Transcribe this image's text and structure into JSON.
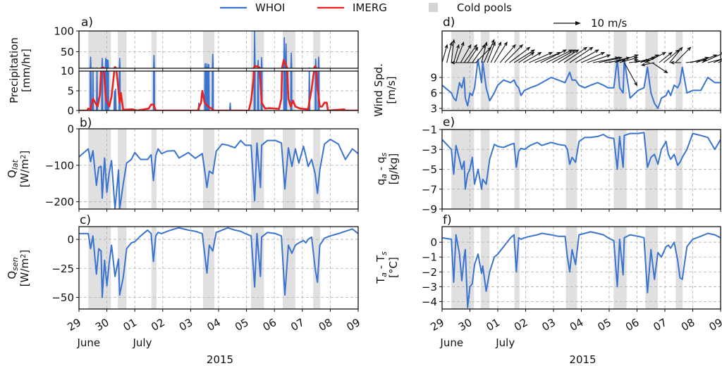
{
  "legend": {
    "whoi": "WHOI",
    "imerg": "IMERG",
    "cold_pools": "Cold pools",
    "colors": {
      "whoi": "#3a74cf",
      "imerg": "#ee2020",
      "cold_pools": "#d9d9d9"
    }
  },
  "wind_reference": {
    "label": "10 m/s",
    "speed": 10
  },
  "x_axis": {
    "xlim": [
      "06-29 00:00",
      "07-09 00:00"
    ],
    "ticks": [
      {
        "t": "06-29 00:00",
        "label": "29"
      },
      {
        "t": "06-30 00:00",
        "label": "30"
      },
      {
        "t": "07-01 00:00",
        "label": "01"
      },
      {
        "t": "07-02 00:00",
        "label": "02"
      },
      {
        "t": "07-03 00:00",
        "label": "03"
      },
      {
        "t": "07-04 00:00",
        "label": "04"
      },
      {
        "t": "07-05 00:00",
        "label": "05"
      },
      {
        "t": "07-06 00:00",
        "label": "06"
      },
      {
        "t": "07-07 00:00",
        "label": "07"
      },
      {
        "t": "07-08 00:00",
        "label": "08"
      },
      {
        "t": "07-09 00:00",
        "label": "09"
      }
    ],
    "months": [
      "June",
      "July"
    ],
    "year": "2015"
  },
  "cold_pools": [
    [
      "06-29 08:00",
      "06-30 03:30"
    ],
    [
      "06-30 09:20",
      "06-30 16:50"
    ],
    [
      "07-01 14:20",
      "07-01 18:40"
    ],
    [
      "07-03 10:40",
      "07-03 20:20"
    ],
    [
      "07-05 03:50",
      "07-05 15:00"
    ],
    [
      "07-06 07:10",
      "07-06 18:00"
    ],
    [
      "07-07 09:20",
      "07-07 15:20"
    ]
  ],
  "time": [
    "06-29 00:00",
    "06-29 08:00",
    "06-29 10:00",
    "06-29 12:00",
    "06-29 15:00",
    "06-29 17:00",
    "06-29 19:00",
    "06-29 20:00",
    "06-29 22:00",
    "06-30 00:00",
    "06-30 02:00",
    "06-30 04:00",
    "06-30 07:00",
    "06-30 10:00",
    "06-30 11:00",
    "06-30 14:00",
    "06-30 17:00",
    "06-30 21:00",
    "07-01 00:00",
    "07-01 05:00",
    "07-01 11:00",
    "07-01 14:00",
    "07-01 16:00",
    "07-01 18:00",
    "07-01 20:00",
    "07-01 23:00",
    "07-02 04:00",
    "07-02 10:00",
    "07-02 14:00",
    "07-02 22:00",
    "07-03 04:00",
    "07-03 10:00",
    "07-03 12:00",
    "07-03 14:00",
    "07-03 16:00",
    "07-03 19:00",
    "07-03 22:00",
    "07-04 03:00",
    "07-04 08:00",
    "07-04 14:00",
    "07-04 19:00",
    "07-04 23:00",
    "07-05 04:00",
    "07-05 07:00",
    "07-05 09:00",
    "07-05 12:00",
    "07-05 13:00",
    "07-05 18:00",
    "07-06 01:00",
    "07-06 06:00",
    "07-06 09:00",
    "07-06 12:00",
    "07-06 15:00",
    "07-06 18:00",
    "07-06 21:00",
    "07-07 01:00",
    "07-07 03:00",
    "07-07 05:00",
    "07-07 08:00",
    "07-07 11:00",
    "07-07 13:00",
    "07-07 15:00",
    "07-07 19:00",
    "07-08 00:00",
    "07-08 07:00",
    "07-08 13:00",
    "07-08 19:00",
    "07-09 00:00"
  ],
  "chart_data": [
    {
      "id": "a",
      "panel_label": "a)",
      "type": "line",
      "ylabel": [
        [
          {
            "t": "Precipitation"
          }
        ],
        [
          {
            "t": "[mm/hr]"
          }
        ]
      ],
      "broken_axis": true,
      "ylim_upper": [
        10,
        100
      ],
      "yticks_upper": [
        100,
        50
      ],
      "ylim_lower": [
        0,
        10
      ],
      "yticks_lower": [
        10,
        5,
        0
      ],
      "whoi_spikes": [
        [
          "06-29 10:00",
          38
        ],
        [
          "06-29 12:00",
          12
        ],
        [
          "06-29 15:30",
          12
        ],
        [
          "06-29 20:00",
          35
        ],
        [
          "06-29 23:00",
          35
        ],
        [
          "06-30 00:00",
          32
        ],
        [
          "06-30 01:00",
          30
        ],
        [
          "06-30 06:30",
          5
        ],
        [
          "06-30 07:30",
          5.5
        ],
        [
          "06-30 11:00",
          35
        ],
        [
          "07-01 16:30",
          42
        ],
        [
          "07-03 07:00",
          2
        ],
        [
          "07-03 12:30",
          22
        ],
        [
          "07-03 14:00",
          22
        ],
        [
          "07-03 15:30",
          20
        ],
        [
          "07-03 19:00",
          45
        ],
        [
          "07-04 10:00",
          2
        ],
        [
          "07-05 07:00",
          100
        ],
        [
          "07-05 10:00",
          30
        ],
        [
          "07-05 13:00",
          37
        ],
        [
          "07-06 08:30",
          85
        ],
        [
          "07-06 10:00",
          70
        ],
        [
          "07-06 14:30",
          48
        ],
        [
          "07-07 06:00",
          12
        ],
        [
          "07-07 11:30",
          33
        ],
        [
          "07-07 14:00",
          38
        ]
      ],
      "imerg": [
        [
          "06-29 00:00",
          0
        ],
        [
          "06-29 07:00",
          0
        ],
        [
          "06-29 08:00",
          0.5
        ],
        [
          "06-29 10:00",
          0.3
        ],
        [
          "06-29 12:00",
          3
        ],
        [
          "06-29 14:00",
          2
        ],
        [
          "06-29 16:00",
          1
        ],
        [
          "06-29 18:00",
          4
        ],
        [
          "06-29 19:00",
          10
        ],
        [
          "06-29 21:00",
          12
        ],
        [
          "06-29 23:00",
          3
        ],
        [
          "06-30 02:00",
          1
        ],
        [
          "06-30 04:00",
          3.5
        ],
        [
          "06-30 06:00",
          9
        ],
        [
          "06-30 07:00",
          13
        ],
        [
          "06-30 09:00",
          8
        ],
        [
          "06-30 11:00",
          2
        ],
        [
          "06-30 12:00",
          4.5
        ],
        [
          "06-30 14:00",
          0.2
        ],
        [
          "06-30 22:00",
          0.3
        ],
        [
          "07-01 02:00",
          0
        ],
        [
          "07-01 12:00",
          0.5
        ],
        [
          "07-01 14:00",
          1.5
        ],
        [
          "07-01 16:00",
          1.5
        ],
        [
          "07-01 18:00",
          0
        ],
        [
          "07-03 06:00",
          0
        ],
        [
          "07-03 09:00",
          2
        ],
        [
          "07-03 10:00",
          5
        ],
        [
          "07-03 12:00",
          2
        ],
        [
          "07-03 15:00",
          1
        ],
        [
          "07-03 18:00",
          0.5
        ],
        [
          "07-03 20:00",
          0
        ],
        [
          "07-05 02:00",
          0
        ],
        [
          "07-05 04:00",
          2.5
        ],
        [
          "07-05 06:00",
          8
        ],
        [
          "07-05 07:00",
          15
        ],
        [
          "07-05 09:00",
          15
        ],
        [
          "07-05 11:00",
          12
        ],
        [
          "07-05 13:00",
          2
        ],
        [
          "07-05 16:00",
          0.5
        ],
        [
          "07-05 20:00",
          0.6
        ],
        [
          "07-06 04:00",
          0.4
        ],
        [
          "07-06 06:00",
          3
        ],
        [
          "07-06 08:00",
          30
        ],
        [
          "07-06 10:00",
          18
        ],
        [
          "07-06 12:00",
          3
        ],
        [
          "07-06 14:00",
          1
        ],
        [
          "07-06 16:00",
          2.5
        ],
        [
          "07-06 18:00",
          1
        ],
        [
          "07-06 22:00",
          0.5
        ],
        [
          "07-07 05:00",
          0.3
        ],
        [
          "07-07 08:00",
          5.5
        ],
        [
          "07-07 10:00",
          10
        ],
        [
          "07-07 11:00",
          15
        ],
        [
          "07-07 13:00",
          6
        ],
        [
          "07-07 15:00",
          1
        ],
        [
          "07-07 17:00",
          1
        ],
        [
          "07-07 19:00",
          2
        ],
        [
          "07-07 21:00",
          2
        ],
        [
          "07-07 22:00",
          0
        ],
        [
          "07-08 12:00",
          0.3
        ],
        [
          "07-08 13:00",
          0
        ],
        [
          "07-09 00:00",
          0
        ]
      ]
    },
    {
      "id": "b",
      "panel_label": "b)",
      "type": "line",
      "ylabel": [
        [
          {
            "t": "Q"
          },
          {
            "t": "lat",
            "sub": true
          }
        ],
        [
          {
            "t": "[W/m"
          },
          {
            "t": "2",
            "sup": true
          },
          {
            "t": "]"
          }
        ]
      ],
      "ylim": [
        -220,
        0
      ],
      "yticks": [
        0,
        -100,
        -200
      ],
      "values": [
        -77,
        -55,
        -90,
        -60,
        -155,
        -106,
        -103,
        -190,
        -80,
        -174,
        -120,
        -87,
        -220,
        -113,
        -220,
        -152,
        -94,
        -84,
        -65,
        -84,
        -84,
        -71,
        -142,
        -74,
        -55,
        -68,
        -61,
        -60,
        -80,
        -65,
        -81,
        -68,
        -113,
        -161,
        -116,
        -123,
        -61,
        -42,
        -45,
        -52,
        -32,
        -45,
        -45,
        -197,
        -39,
        -161,
        -45,
        -32,
        -32,
        -39,
        -165,
        -52,
        -103,
        -55,
        -94,
        -48,
        -74,
        -103,
        -84,
        -123,
        -177,
        -113,
        -42,
        -29,
        -42,
        -84,
        -55,
        -68
      ]
    },
    {
      "id": "c",
      "panel_label": "c)",
      "type": "line",
      "ylabel": [
        [
          {
            "t": "Q"
          },
          {
            "t": "sen",
            "sub": true
          }
        ],
        [
          {
            "t": "[W/m"
          },
          {
            "t": "2",
            "sup": true
          },
          {
            "t": "]"
          }
        ]
      ],
      "ylim": [
        -60,
        11
      ],
      "yticks": [
        0,
        -25,
        -50
      ],
      "values": [
        5,
        5,
        -8,
        3,
        -30,
        -8,
        -10,
        -50,
        -18,
        -40,
        -20,
        -5,
        -32,
        -17,
        -48,
        -33,
        -8,
        -3,
        -2,
        3,
        8,
        5,
        -19,
        3,
        6,
        5,
        7,
        9,
        10,
        8,
        7,
        5,
        -12,
        -29,
        -5,
        -10,
        6,
        8,
        10,
        8,
        7,
        5,
        3,
        -41,
        5,
        -32,
        2,
        6,
        5,
        3,
        -48,
        -5,
        -12,
        -5,
        -3,
        -1,
        -3,
        0,
        2,
        -25,
        -37,
        -5,
        1,
        3,
        5,
        7,
        9,
        5
      ]
    },
    {
      "id": "d",
      "panel_label": "d)",
      "type": "line",
      "ylabel": [
        [
          {
            "t": "Wind Spd."
          }
        ],
        [
          {
            "t": "[m/s]"
          }
        ]
      ],
      "ylim": [
        2.6,
        18
      ],
      "yticks": [
        9,
        6,
        3
      ],
      "values": [
        7.5,
        6,
        5,
        4.5,
        8,
        7,
        9,
        5,
        3.5,
        6,
        5.5,
        7,
        12.5,
        8,
        12,
        7,
        4.5,
        6,
        7.5,
        8.5,
        8,
        8.5,
        7.5,
        7,
        5.5,
        6.5,
        7,
        7.5,
        8,
        9,
        8.5,
        8,
        9,
        10,
        8.5,
        8.5,
        7.5,
        7,
        7.5,
        8,
        7.5,
        7,
        7,
        12.5,
        7,
        6,
        12.5,
        5,
        6.5,
        7,
        11,
        6,
        4,
        3,
        5,
        5.5,
        6.5,
        5.5,
        7.5,
        7,
        8,
        11,
        6,
        6.5,
        6.5,
        9,
        8,
        8
      ],
      "wind_vectors": [
        [
          "06-29 00:00",
          2,
          7
        ],
        [
          "06-29 04:00",
          2,
          8
        ],
        [
          "06-29 08:00",
          1,
          9
        ],
        [
          "06-29 10:00",
          2,
          7
        ],
        [
          "06-29 12:00",
          3,
          8
        ],
        [
          "06-29 16:00",
          4,
          7
        ],
        [
          "06-29 19:00",
          5,
          7
        ],
        [
          "06-29 22:00",
          4,
          6
        ],
        [
          "06-30 02:00",
          5,
          7
        ],
        [
          "06-30 05:00",
          6,
          6
        ],
        [
          "06-30 06:00",
          -10,
          0
        ],
        [
          "06-30 10:00",
          2,
          8
        ],
        [
          "06-30 12:00",
          4,
          9
        ],
        [
          "06-30 15:00",
          3,
          8
        ],
        [
          "06-30 18:00",
          4,
          8
        ],
        [
          "06-30 21:00",
          5,
          8
        ],
        [
          "07-01 02:00",
          6,
          7
        ],
        [
          "07-01 06:00",
          7,
          7
        ],
        [
          "07-01 10:00",
          8,
          6
        ],
        [
          "07-01 14:00",
          8,
          5
        ],
        [
          "07-01 18:00",
          6,
          4
        ],
        [
          "07-01 22:00",
          7,
          4
        ],
        [
          "07-02 03:00",
          9,
          4
        ],
        [
          "07-02 08:00",
          10,
          4
        ],
        [
          "07-02 13:00",
          10,
          5
        ],
        [
          "07-02 18:00",
          10,
          5
        ],
        [
          "07-02 23:00",
          9,
          5
        ],
        [
          "07-03 04:00",
          8,
          5
        ],
        [
          "07-03 09:00",
          9,
          6
        ],
        [
          "07-03 14:00",
          9,
          6
        ],
        [
          "07-03 19:00",
          9,
          5
        ],
        [
          "07-04 00:00",
          9,
          4
        ],
        [
          "07-04 05:00",
          9,
          3
        ],
        [
          "07-04 10:00",
          10,
          2
        ],
        [
          "07-04 15:00",
          9,
          2
        ],
        [
          "07-04 20:00",
          8,
          1
        ],
        [
          "07-05 00:00",
          8,
          2
        ],
        [
          "07-05 05:00",
          9,
          3
        ],
        [
          "07-05 09:00",
          7,
          2
        ],
        [
          "07-05 13:00",
          5,
          -9
        ],
        [
          "07-05 17:00",
          8,
          1
        ],
        [
          "07-05 22:00",
          8,
          2
        ],
        [
          "07-06 03:00",
          7,
          3
        ],
        [
          "07-06 07:00",
          8,
          4
        ],
        [
          "07-06 11:00",
          -6,
          1
        ],
        [
          "07-06 13:00",
          6,
          -4
        ],
        [
          "07-06 15:00",
          -5,
          -1
        ],
        [
          "07-06 19:00",
          5,
          4
        ],
        [
          "07-06 23:00",
          6,
          5
        ],
        [
          "07-07 04:00",
          5,
          6
        ],
        [
          "07-07 09:00",
          6,
          6
        ],
        [
          "07-07 14:00",
          -4,
          0
        ],
        [
          "07-07 18:00",
          8,
          1
        ],
        [
          "07-07 22:00",
          7,
          2
        ],
        [
          "07-08 03:00",
          8,
          3
        ],
        [
          "07-08 08:00",
          9,
          4
        ],
        [
          "07-08 13:00",
          8,
          2
        ],
        [
          "07-08 18:00",
          7,
          3
        ],
        [
          "07-08 22:00",
          8,
          4
        ]
      ]
    },
    {
      "id": "e",
      "panel_label": "e)",
      "type": "line",
      "ylabel": [
        [
          {
            "t": "q"
          },
          {
            "t": "a",
            "sub": true
          },
          {
            "t": " - q"
          },
          {
            "t": "s",
            "sub": true
          }
        ],
        [
          {
            "t": "[g/kg]"
          }
        ]
      ],
      "ylim": [
        -9,
        -1
      ],
      "yticks": [
        -1,
        -3,
        -5,
        -7,
        -9
      ],
      "values": [
        -2,
        -3,
        -5.5,
        -2.6,
        -4,
        -5,
        -4.2,
        -7,
        -5.5,
        -5,
        -3.8,
        -6.5,
        -5,
        -7,
        -6,
        -6.5,
        -4,
        -2.5,
        -2.7,
        -2.8,
        -2.5,
        -2.4,
        -4.8,
        -3.2,
        -2.9,
        -3,
        -2.6,
        -2.3,
        -2.6,
        -2.3,
        -2.5,
        -2.6,
        -3,
        -4.5,
        -3.8,
        -4.3,
        -2.2,
        -1.8,
        -1.8,
        -1.7,
        -1.5,
        -1.8,
        -1.9,
        -5,
        -1.7,
        -4.8,
        -1.6,
        -1.4,
        -1.4,
        -1.3,
        -4.8,
        -3.8,
        -3.5,
        -4.5,
        -3,
        -2.2,
        -3.5,
        -4,
        -3.5,
        -4.6,
        -4.3,
        -3.8,
        -3,
        -1.4,
        -1.6,
        -1.8,
        -3,
        -2
      ]
    },
    {
      "id": "f",
      "panel_label": "f)",
      "type": "line",
      "ylabel": [
        [
          {
            "t": "T"
          },
          {
            "t": "a",
            "sub": true
          },
          {
            "t": " - T"
          },
          {
            "t": "s",
            "sub": true
          }
        ],
        [
          {
            "t": "[°C]"
          }
        ]
      ],
      "ylim": [
        -4.5,
        1.05
      ],
      "yticks": [
        0,
        -1,
        -2,
        -3,
        -4
      ],
      "values": [
        0.3,
        0.2,
        -2.7,
        0.5,
        -0.8,
        -2.6,
        -1,
        -0.5,
        -4.4,
        -3,
        -2.8,
        -1.5,
        -0.8,
        -2.1,
        -1.6,
        -3.3,
        -2,
        -1,
        -0.8,
        -0.3,
        0.3,
        0.5,
        -2,
        0.3,
        0.2,
        0.3,
        0.4,
        0.5,
        0.6,
        0.5,
        0.4,
        0.4,
        -1,
        -2,
        -0.5,
        -1.5,
        0.5,
        0.6,
        0.7,
        0.6,
        0.5,
        0.3,
        0.1,
        -3,
        0.2,
        -2.2,
        0.3,
        0.5,
        0.4,
        0.3,
        -3.4,
        -0.5,
        -2.5,
        -0.7,
        -1,
        -0.3,
        -0.2,
        -0.4,
        0,
        -1.2,
        -2.4,
        -2.5,
        -0.3,
        0.2,
        0.4,
        0.6,
        0.5,
        0.3
      ]
    }
  ]
}
